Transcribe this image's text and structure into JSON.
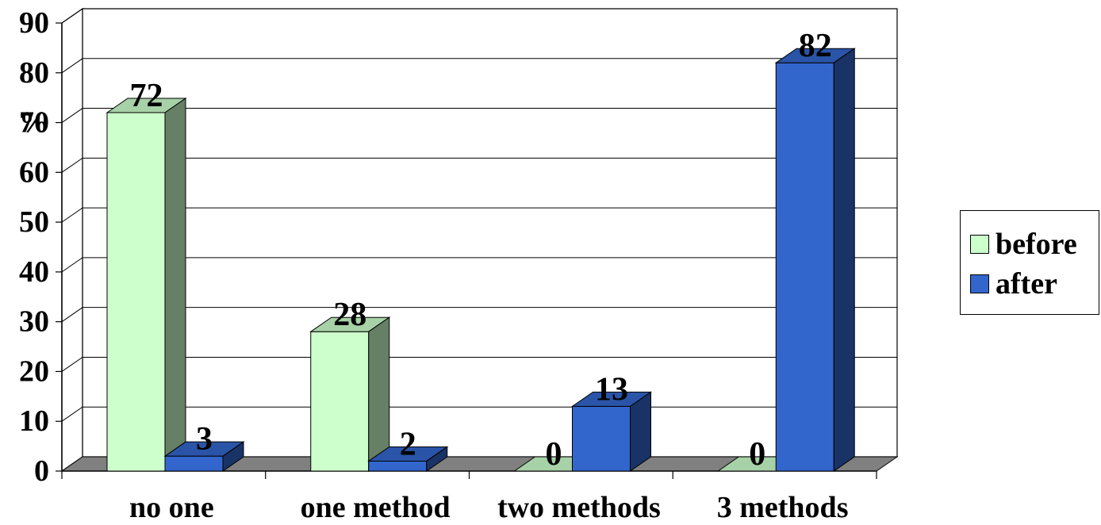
{
  "chart_data": {
    "type": "bar",
    "categories": [
      "no one",
      "one method",
      "two methods",
      "3 methods"
    ],
    "series": [
      {
        "name": "before",
        "values": [
          72,
          28,
          0,
          0
        ],
        "color": "#ccffcc"
      },
      {
        "name": "after",
        "values": [
          3,
          2,
          13,
          82
        ],
        "color": "#3366cc"
      }
    ],
    "data_labels": [
      [
        "72",
        "28",
        "0",
        "0"
      ],
      [
        "3",
        "2",
        "13",
        "82"
      ]
    ],
    "y_ticks": [
      "0",
      "10",
      "20",
      "30",
      "40",
      "50",
      "60",
      "70",
      "80",
      "90"
    ],
    "ylabel": "%",
    "ylim": [
      0,
      90
    ],
    "grid": true,
    "legend_position": "right",
    "style": "3d-bar"
  }
}
